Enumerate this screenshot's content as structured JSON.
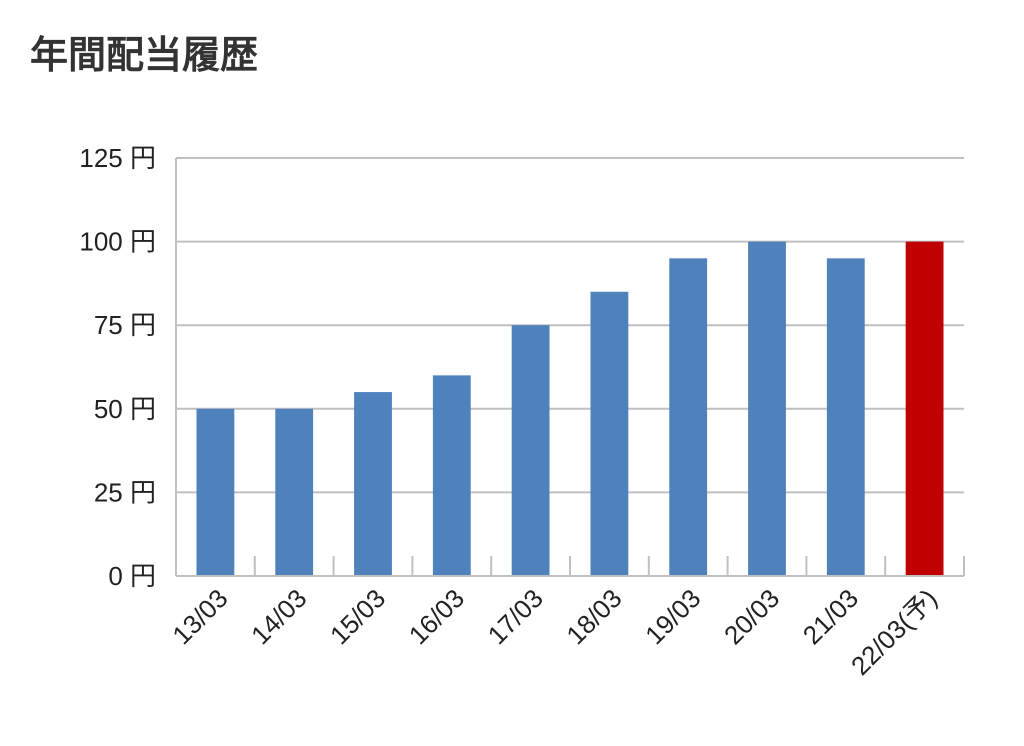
{
  "chart_data": {
    "type": "bar",
    "title": "年間配当履歴",
    "xlabel": "",
    "ylabel": "",
    "ylim": [
      0,
      125
    ],
    "yticks": [
      0,
      25,
      50,
      75,
      100,
      125
    ],
    "yunit": "円",
    "grid": true,
    "categories": [
      "13/03",
      "14/03",
      "15/03",
      "16/03",
      "17/03",
      "18/03",
      "19/03",
      "20/03",
      "21/03",
      "22/03(予)"
    ],
    "values": [
      50,
      50,
      55,
      60,
      75,
      85,
      95,
      100,
      95,
      100
    ],
    "colors": [
      "#4f81bd",
      "#4f81bd",
      "#4f81bd",
      "#4f81bd",
      "#4f81bd",
      "#4f81bd",
      "#4f81bd",
      "#4f81bd",
      "#4f81bd",
      "#c00000"
    ]
  }
}
